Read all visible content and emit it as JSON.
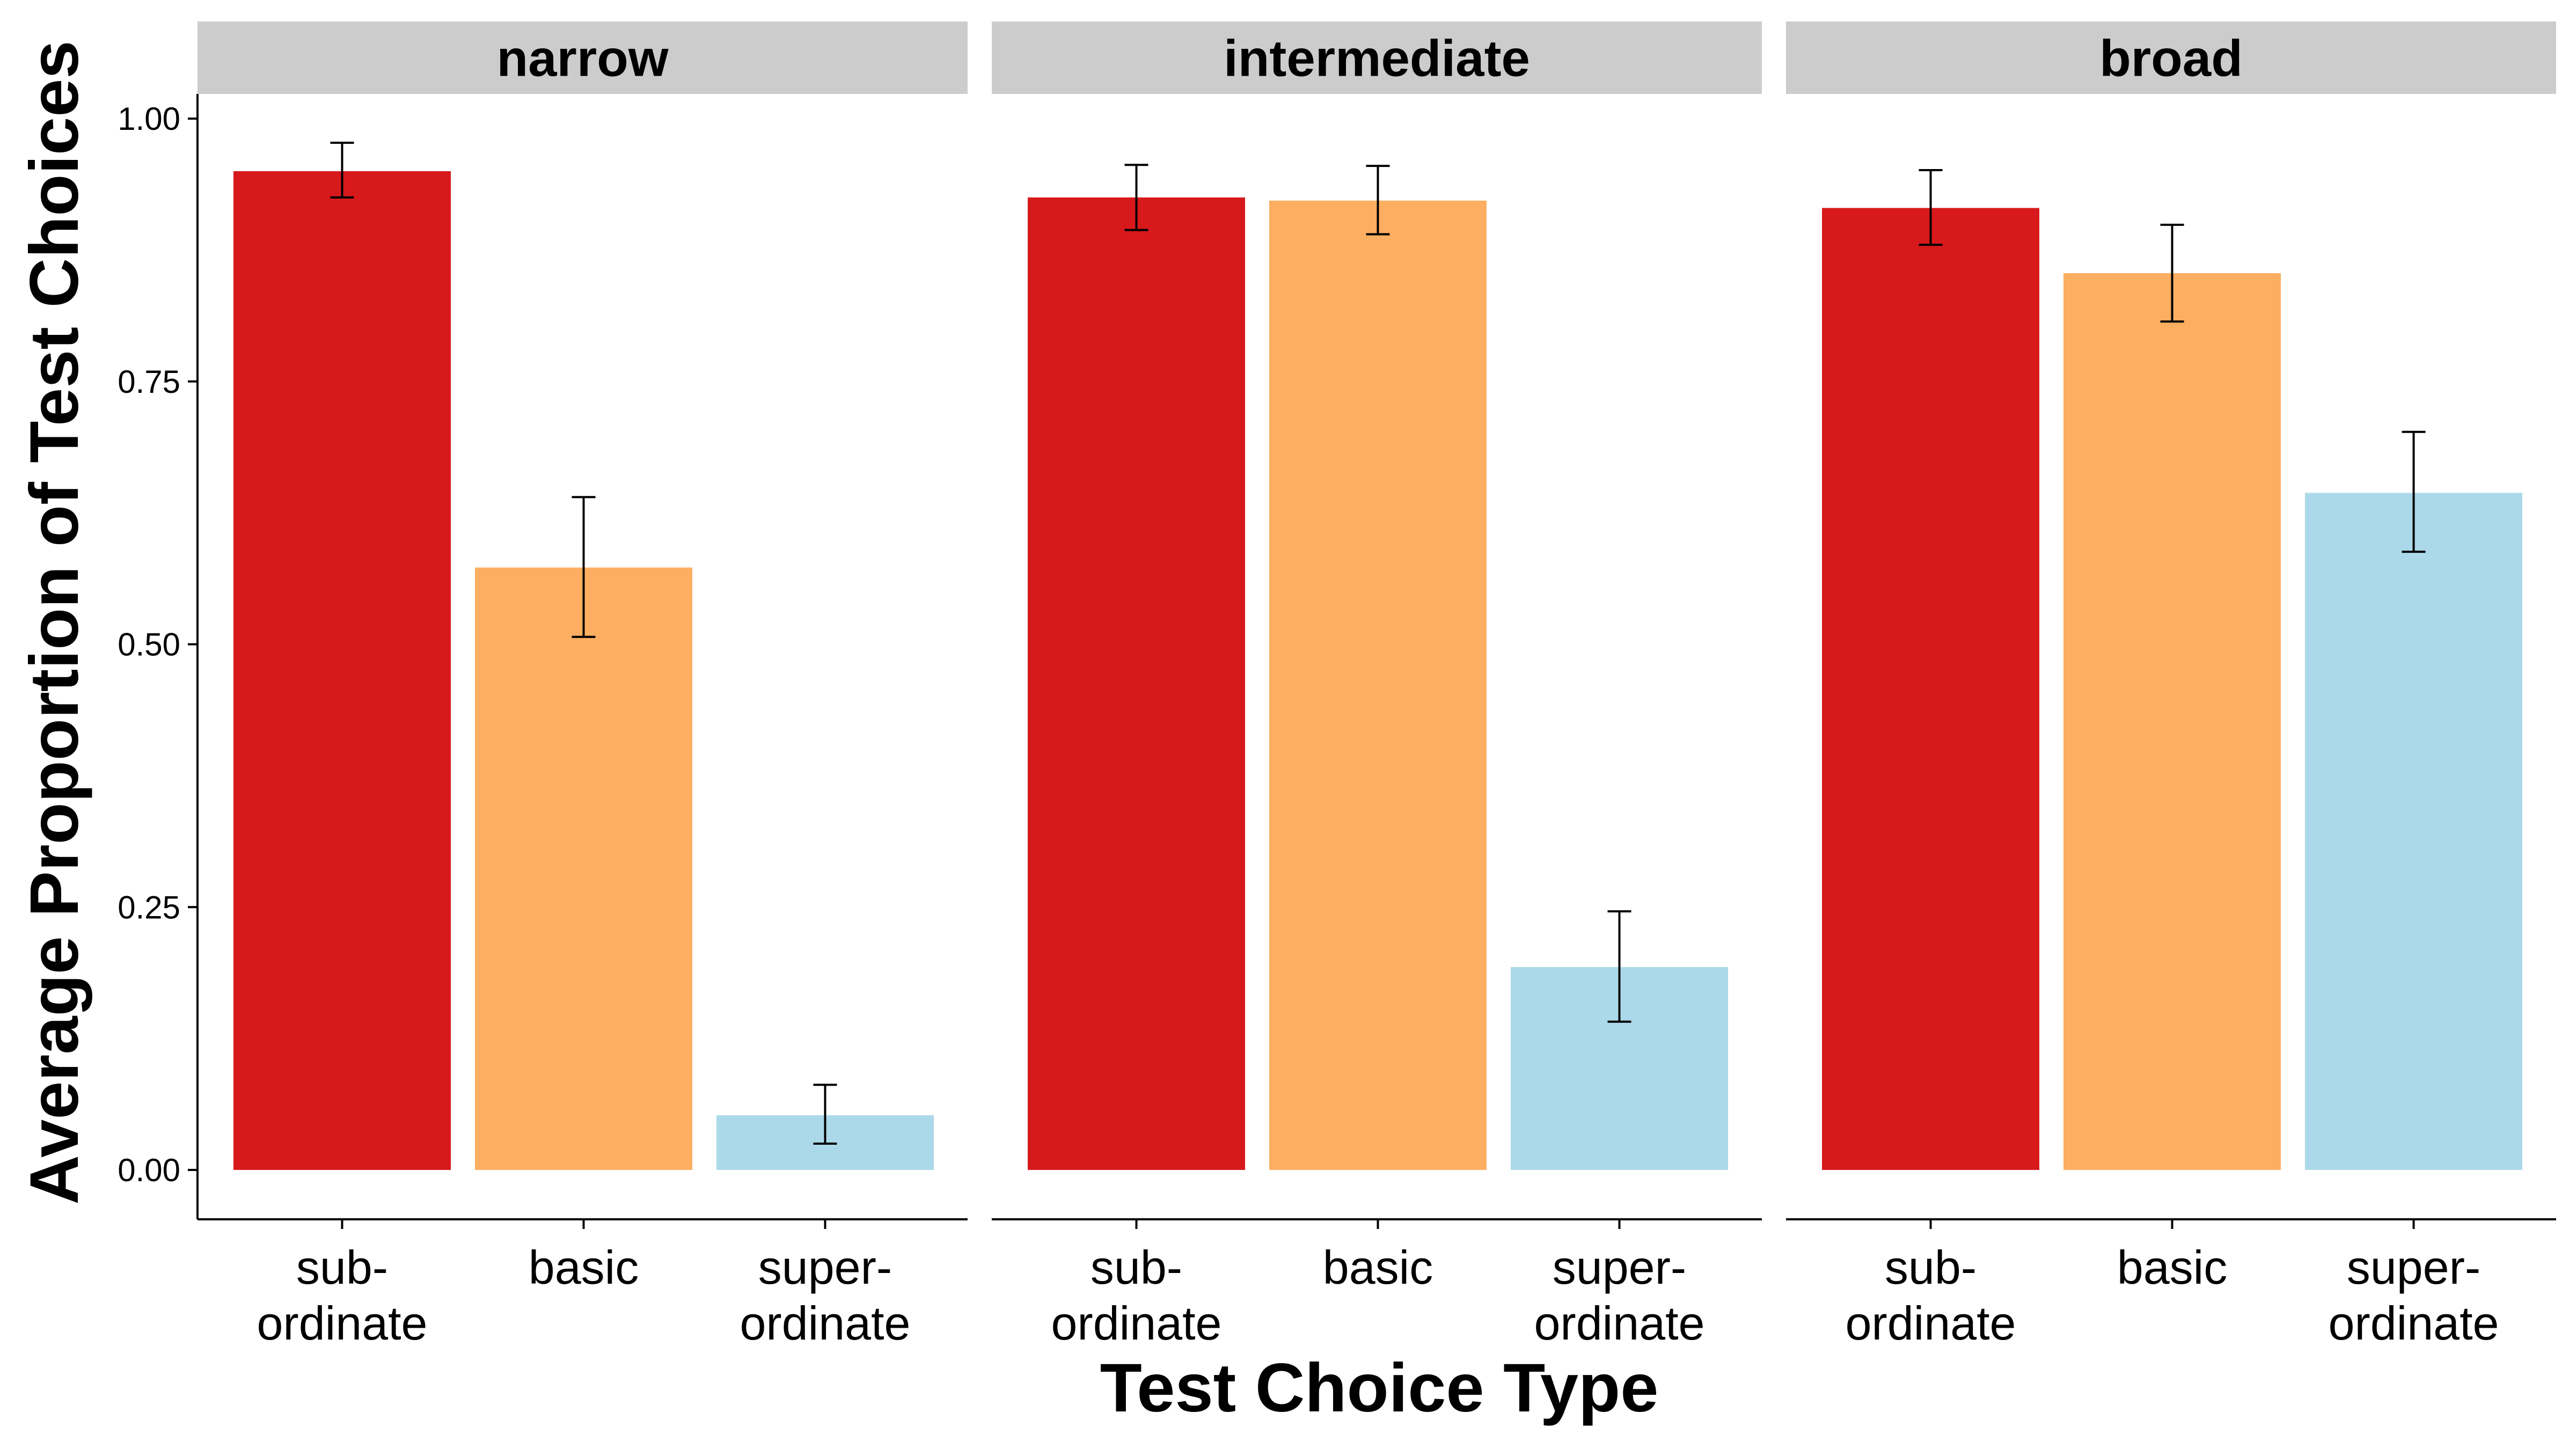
{
  "chart_data": {
    "type": "bar",
    "xlabel": "Test Choice Type",
    "ylabel": "Average Proportion of Test Choices",
    "ylim": [
      0,
      1
    ],
    "yticks": [
      "0.00",
      "0.25",
      "0.50",
      "0.75",
      "1.00"
    ],
    "grid": false,
    "legend": "none",
    "categories": [
      {
        "line1": "sub-",
        "line2": "ordinate",
        "color": "#d7191c"
      },
      {
        "line1": "basic",
        "line2": "",
        "color": "#fdae61"
      },
      {
        "line1": "super-",
        "line2": "ordinate",
        "color": "#abd9e9"
      }
    ],
    "panels": [
      {
        "name": "narrow",
        "values": [
          0.95,
          0.573,
          0.052
        ],
        "err_low": [
          0.925,
          0.507,
          0.025
        ],
        "err_high": [
          0.977,
          0.64,
          0.081
        ]
      },
      {
        "name": "intermediate",
        "values": [
          0.925,
          0.922,
          0.193
        ],
        "err_low": [
          0.894,
          0.89,
          0.141
        ],
        "err_high": [
          0.956,
          0.955,
          0.246
        ]
      },
      {
        "name": "broad",
        "values": [
          0.915,
          0.853,
          0.644
        ],
        "err_low": [
          0.88,
          0.807,
          0.588
        ],
        "err_high": [
          0.951,
          0.899,
          0.702
        ]
      }
    ]
  }
}
